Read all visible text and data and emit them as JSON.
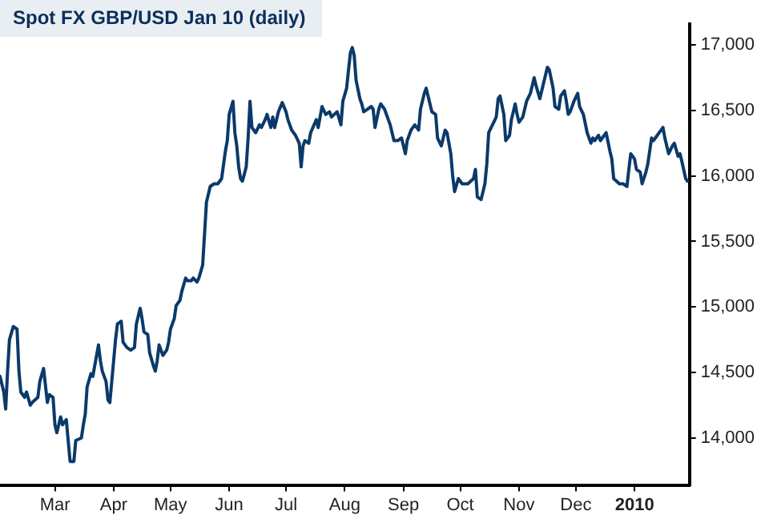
{
  "chart_data": {
    "type": "line",
    "title": "Spot FX GBP/USD Jan 10 (daily)",
    "x": [
      "2009-01-31",
      "2009-02-02",
      "2009-02-03",
      "2009-02-04",
      "2009-02-05",
      "2009-02-07",
      "2009-02-09",
      "2009-02-10",
      "2009-02-11",
      "2009-02-13",
      "2009-02-14",
      "2009-02-16",
      "2009-02-17",
      "2009-02-20",
      "2009-02-21",
      "2009-02-23",
      "2009-02-25",
      "2009-02-26",
      "2009-02-28",
      "2009-03-01",
      "2009-03-02",
      "2009-03-04",
      "2009-03-05",
      "2009-03-07",
      "2009-03-08",
      "2009-03-09",
      "2009-03-11",
      "2009-03-12",
      "2009-03-15",
      "2009-03-16",
      "2009-03-17",
      "2009-03-18",
      "2009-03-20",
      "2009-03-21",
      "2009-03-22",
      "2009-03-24",
      "2009-03-25",
      "2009-03-26",
      "2009-03-28",
      "2009-03-29",
      "2009-03-30",
      "2009-03-31",
      "2009-04-02",
      "2009-04-03",
      "2009-04-05",
      "2009-04-06",
      "2009-04-08",
      "2009-04-10",
      "2009-04-12",
      "2009-04-13",
      "2009-04-15",
      "2009-04-16",
      "2009-04-17",
      "2009-04-19",
      "2009-04-20",
      "2009-04-22",
      "2009-04-23",
      "2009-04-24",
      "2009-04-25",
      "2009-04-26",
      "2009-04-27",
      "2009-04-29",
      "2009-04-30",
      "2009-05-01",
      "2009-05-03",
      "2009-05-04",
      "2009-05-06",
      "2009-05-07",
      "2009-05-09",
      "2009-05-10",
      "2009-05-12",
      "2009-05-13",
      "2009-05-15",
      "2009-05-16",
      "2009-05-18",
      "2009-05-19",
      "2009-05-20",
      "2009-05-22",
      "2009-05-24",
      "2009-05-26",
      "2009-05-28",
      "2009-05-30",
      "2009-05-31",
      "2009-06-01",
      "2009-06-03",
      "2009-06-04",
      "2009-06-05",
      "2009-06-06",
      "2009-06-07",
      "2009-06-08",
      "2009-06-10",
      "2009-06-11",
      "2009-06-12",
      "2009-06-13",
      "2009-06-15",
      "2009-06-17",
      "2009-06-18",
      "2009-06-20",
      "2009-06-21",
      "2009-06-23",
      "2009-06-24",
      "2009-06-25",
      "2009-06-27",
      "2009-06-29",
      "2009-07-01",
      "2009-07-02",
      "2009-07-04",
      "2009-07-06",
      "2009-07-08",
      "2009-07-09",
      "2009-07-10",
      "2009-07-11",
      "2009-07-13",
      "2009-07-14",
      "2009-07-17",
      "2009-07-18",
      "2009-07-20",
      "2009-07-22",
      "2009-07-24",
      "2009-07-25",
      "2009-07-28",
      "2009-07-30",
      "2009-07-31",
      "2009-08-02",
      "2009-08-03",
      "2009-08-04",
      "2009-08-05",
      "2009-08-06",
      "2009-08-07",
      "2009-08-09",
      "2009-08-10",
      "2009-08-11",
      "2009-08-13",
      "2009-08-15",
      "2009-08-16",
      "2009-08-17",
      "2009-08-19",
      "2009-08-20",
      "2009-08-22",
      "2009-08-25",
      "2009-08-27",
      "2009-08-29",
      "2009-08-31",
      "2009-09-02",
      "2009-09-03",
      "2009-09-05",
      "2009-09-07",
      "2009-09-09",
      "2009-09-10",
      "2009-09-12",
      "2009-09-13",
      "2009-09-14",
      "2009-09-16",
      "2009-09-18",
      "2009-09-19",
      "2009-09-21",
      "2009-09-23",
      "2009-09-24",
      "2009-09-26",
      "2009-09-27",
      "2009-09-28",
      "2009-09-30",
      "2009-10-02",
      "2009-10-05",
      "2009-10-08",
      "2009-10-09",
      "2009-10-10",
      "2009-10-12",
      "2009-10-14",
      "2009-10-15",
      "2009-10-16",
      "2009-10-18",
      "2009-10-20",
      "2009-10-21",
      "2009-10-22",
      "2009-10-24",
      "2009-10-25",
      "2009-10-27",
      "2009-10-28",
      "2009-10-30",
      "2009-10-31",
      "2009-11-01",
      "2009-11-03",
      "2009-11-05",
      "2009-11-07",
      "2009-11-09",
      "2009-11-10",
      "2009-11-12",
      "2009-11-14",
      "2009-11-16",
      "2009-11-17",
      "2009-11-19",
      "2009-11-20",
      "2009-11-22",
      "2009-11-23",
      "2009-11-25",
      "2009-11-26",
      "2009-11-27",
      "2009-11-28",
      "2009-11-30",
      "2009-12-02",
      "2009-12-03",
      "2009-12-05",
      "2009-12-07",
      "2009-12-09",
      "2009-12-10",
      "2009-12-11",
      "2009-12-13",
      "2009-12-14",
      "2009-12-16",
      "2009-12-17",
      "2009-12-19",
      "2009-12-20",
      "2009-12-21",
      "2009-12-24",
      "2009-12-26",
      "2009-12-28",
      "2009-12-29",
      "2009-12-30",
      "2010-01-01",
      "2010-01-02",
      "2010-01-04",
      "2010-01-05",
      "2010-01-07",
      "2010-01-08",
      "2010-01-10",
      "2010-01-11",
      "2010-01-13",
      "2010-01-15",
      "2010-01-16",
      "2010-01-17",
      "2010-01-19",
      "2010-01-21",
      "2010-01-22",
      "2010-01-24",
      "2010-01-25",
      "2010-01-26",
      "2010-01-28",
      "2010-01-29"
    ],
    "series": [
      {
        "color": "#0b3a6a",
        "values": [
          14470,
          14350,
          14220,
          14510,
          14750,
          14850,
          14830,
          14510,
          14350,
          14310,
          14350,
          14250,
          14270,
          14310,
          14430,
          14530,
          14270,
          14330,
          14310,
          14100,
          14040,
          14160,
          14100,
          14140,
          13980,
          13820,
          13820,
          13980,
          14000,
          14100,
          14180,
          14390,
          14490,
          14470,
          14550,
          14710,
          14590,
          14510,
          14430,
          14290,
          14270,
          14430,
          14750,
          14870,
          14890,
          14730,
          14690,
          14670,
          14690,
          14870,
          14990,
          14910,
          14810,
          14790,
          14650,
          14550,
          14510,
          14590,
          14710,
          14670,
          14630,
          14670,
          14730,
          14830,
          14910,
          15010,
          15050,
          15120,
          15220,
          15200,
          15200,
          15220,
          15190,
          15220,
          15320,
          15560,
          15800,
          15920,
          15940,
          15940,
          15980,
          16190,
          16270,
          16470,
          16570,
          16330,
          16230,
          16070,
          15980,
          15960,
          16070,
          16290,
          16570,
          16370,
          16330,
          16390,
          16370,
          16430,
          16470,
          16370,
          16450,
          16370,
          16490,
          16560,
          16490,
          16430,
          16350,
          16310,
          16250,
          16070,
          16230,
          16270,
          16250,
          16330,
          16430,
          16370,
          16530,
          16470,
          16490,
          16450,
          16490,
          16390,
          16570,
          16670,
          16810,
          16940,
          16980,
          16920,
          16730,
          16590,
          16550,
          16490,
          16510,
          16530,
          16510,
          16370,
          16510,
          16550,
          16510,
          16390,
          16270,
          16270,
          16290,
          16170,
          16270,
          16350,
          16390,
          16350,
          16510,
          16630,
          16670,
          16610,
          16490,
          16470,
          16290,
          16230,
          16350,
          16330,
          16170,
          16000,
          15880,
          15980,
          15940,
          15940,
          15980,
          16050,
          15840,
          15820,
          15940,
          16090,
          16330,
          16390,
          16450,
          16590,
          16610,
          16470,
          16270,
          16310,
          16430,
          16550,
          16470,
          16410,
          16450,
          16570,
          16630,
          16750,
          16690,
          16590,
          16710,
          16830,
          16810,
          16670,
          16530,
          16510,
          16610,
          16650,
          16570,
          16470,
          16490,
          16570,
          16630,
          16530,
          16470,
          16330,
          16250,
          16290,
          16270,
          16310,
          16270,
          16310,
          16330,
          16190,
          16130,
          15980,
          15940,
          15940,
          15920,
          16050,
          16170,
          16130,
          16050,
          16030,
          15940,
          16030,
          16090,
          16290,
          16270,
          16310,
          16350,
          16370,
          16290,
          16170,
          16230,
          16250,
          16150,
          16170,
          16110,
          15980,
          15960
        ]
      }
    ],
    "xlim": [
      "2009-01-31",
      "2010-01-30"
    ],
    "xticks": [
      {
        "value": "2009-03-01",
        "label": "Mar"
      },
      {
        "value": "2009-04-01",
        "label": "Apr"
      },
      {
        "value": "2009-05-01",
        "label": "May"
      },
      {
        "value": "2009-06-01",
        "label": "Jun"
      },
      {
        "value": "2009-07-01",
        "label": "Jul"
      },
      {
        "value": "2009-08-01",
        "label": "Aug"
      },
      {
        "value": "2009-09-01",
        "label": "Sep"
      },
      {
        "value": "2009-10-01",
        "label": "Oct"
      },
      {
        "value": "2009-11-01",
        "label": "Nov"
      },
      {
        "value": "2009-12-01",
        "label": "Dec"
      },
      {
        "value": "2010-01-01",
        "label": "2010"
      }
    ],
    "ylim": [
      13640,
      17160
    ],
    "yticks": [
      {
        "value": 14000,
        "label": "14,000"
      },
      {
        "value": 14500,
        "label": "14,500"
      },
      {
        "value": 15000,
        "label": "15,000"
      },
      {
        "value": 15500,
        "label": "15,500"
      },
      {
        "value": 16000,
        "label": "16,000"
      },
      {
        "value": 16500,
        "label": "16,500"
      },
      {
        "value": 17000,
        "label": "17,000"
      }
    ],
    "grid": false,
    "legend": false
  }
}
